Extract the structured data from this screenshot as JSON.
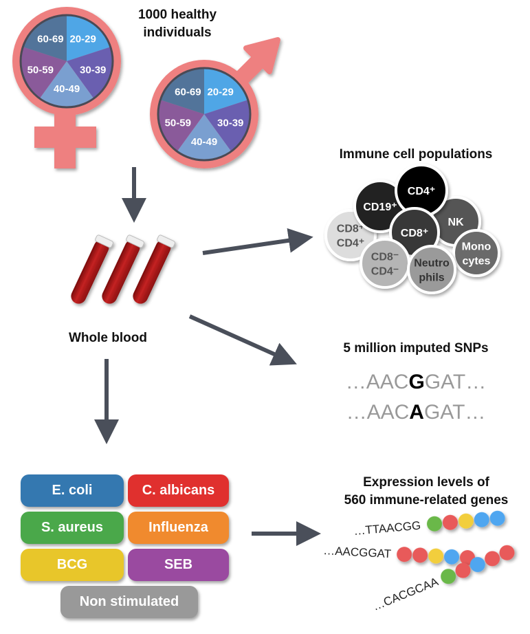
{
  "title": "1000 healthy individuals",
  "title_lines": [
    "1000 healthy",
    "individuals"
  ],
  "age_groups": [
    {
      "label": "20-29",
      "color": "#4FA6E6"
    },
    {
      "label": "30-39",
      "color": "#6A5FB0"
    },
    {
      "label": "40-49",
      "color": "#7A9FD0"
    },
    {
      "label": "50-59",
      "color": "#8A5A9A"
    },
    {
      "label": "60-69",
      "color": "#52749A"
    }
  ],
  "symbol_color": "#EE8080",
  "arrow_color": "#4A4F5A",
  "blood_label": "Whole blood",
  "cells": {
    "title": "Immune cell populations",
    "items": [
      {
        "label": "CD8⁺\nCD4⁺",
        "fill": "#DDDDDD",
        "text": "#555555"
      },
      {
        "label": "CD19⁺",
        "fill": "#222222",
        "text": "#FFFFFF"
      },
      {
        "label": "NK",
        "fill": "#555555",
        "text": "#FFFFFF"
      },
      {
        "label": "CD4⁺",
        "fill": "#000000",
        "text": "#FFFFFF"
      },
      {
        "label": "CD8⁺",
        "fill": "#383838",
        "text": "#FFFFFF"
      },
      {
        "label": "CD8⁻\nCD4⁻",
        "fill": "#B5B5B5",
        "text": "#555555"
      },
      {
        "label": "Mono\ncytes",
        "fill": "#6A6A6A",
        "text": "#FFFFFF"
      },
      {
        "label": "Neutro\nphils",
        "fill": "#9A9A9A",
        "text": "#333333"
      }
    ]
  },
  "snps": {
    "title": "5 million imputed SNPs",
    "lines": [
      {
        "prefix": "…AAC",
        "allele": "G",
        "suffix": "GAT…"
      },
      {
        "prefix": "…AAC",
        "allele": "A",
        "suffix": "GAT…"
      }
    ]
  },
  "stimuli": [
    {
      "label": "E. coli",
      "color": "#3478B0"
    },
    {
      "label": "C. albicans",
      "color": "#E0302E"
    },
    {
      "label": "S. aureus",
      "color": "#4AA84A"
    },
    {
      "label": "Influenza",
      "color": "#F08A2E"
    },
    {
      "label": "BCG",
      "color": "#E8C62A"
    },
    {
      "label": "SEB",
      "color": "#9A4AA0"
    },
    {
      "label": "Non stimulated",
      "color": "#999999"
    }
  ],
  "expression": {
    "title_lines": [
      "Expression levels of",
      "560 immune-related genes"
    ],
    "rows": [
      {
        "seq": "…TTAACGG",
        "beads": [
          "#6BB84A",
          "#E85A5A",
          "#F2CE3C",
          "#4FA6F0",
          "#4FA6F0"
        ]
      },
      {
        "seq": "…AACGGAT",
        "beads": [
          "#E85A5A",
          "#E85A5A",
          "#F2CE3C",
          "#4FA6F0",
          "#E85A5A"
        ]
      },
      {
        "seq": "…CACGCAA",
        "beads": [
          "#6BB84A",
          "#E85A5A",
          "#4FA6F0",
          "#E85A5A",
          "#E85A5A"
        ]
      }
    ]
  }
}
